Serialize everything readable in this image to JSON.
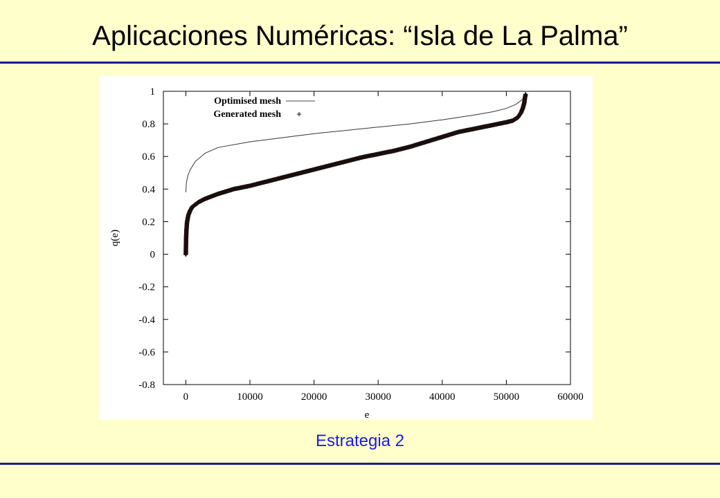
{
  "slide": {
    "title": "Aplicaciones Numéricas: “Isla de La Palma”",
    "caption": "Estrategia 2"
  },
  "chart_data": {
    "type": "line",
    "xlabel": "e",
    "ylabel": "q(e)",
    "xlim": [
      -3500,
      60000
    ],
    "ylim": [
      -0.8,
      1
    ],
    "x_ticks": [
      0,
      10000,
      20000,
      30000,
      40000,
      50000,
      60000
    ],
    "x_tick_labels": [
      "0",
      "10000",
      "20000",
      "30000",
      "40000",
      "50000",
      "60000"
    ],
    "y_ticks": [
      1,
      0.8,
      0.6,
      0.4,
      0.2,
      0,
      -0.2,
      -0.4,
      -0.6,
      -0.8
    ],
    "y_tick_labels": [
      "1",
      "0.8",
      "0.6",
      "0.4",
      "0.2",
      "0",
      "-0.2",
      "-0.4",
      "-0.6",
      "-0.8"
    ],
    "legend_position": "top-left",
    "series": [
      {
        "name": "Optimised mesh",
        "style": "line",
        "x": [
          0,
          100,
          300,
          700,
          1500,
          3000,
          5000,
          10000,
          15000,
          20000,
          25000,
          30000,
          35000,
          40000,
          45000,
          48000,
          50000,
          51500,
          52500,
          53000
        ],
        "y": [
          0.38,
          0.44,
          0.48,
          0.52,
          0.57,
          0.62,
          0.655,
          0.69,
          0.715,
          0.74,
          0.76,
          0.78,
          0.8,
          0.825,
          0.855,
          0.875,
          0.895,
          0.92,
          0.95,
          0.98
        ]
      },
      {
        "name": "Generated mesh",
        "style": "plus-markers",
        "x": [
          0,
          20,
          50,
          100,
          200,
          400,
          700,
          1000,
          2000,
          3000,
          5000,
          7500,
          10000,
          12500,
          15000,
          17500,
          20000,
          22500,
          25000,
          27500,
          30000,
          32500,
          35000,
          37500,
          40000,
          42500,
          45000,
          47500,
          50000,
          51000,
          51800,
          52300,
          52600,
          52800,
          52900,
          53000
        ],
        "y": [
          0.0,
          0.05,
          0.1,
          0.15,
          0.2,
          0.24,
          0.27,
          0.29,
          0.32,
          0.34,
          0.37,
          0.4,
          0.42,
          0.445,
          0.47,
          0.495,
          0.52,
          0.545,
          0.57,
          0.595,
          0.615,
          0.635,
          0.66,
          0.69,
          0.72,
          0.75,
          0.77,
          0.79,
          0.81,
          0.82,
          0.84,
          0.87,
          0.9,
          0.93,
          0.96,
          0.98
        ]
      }
    ]
  }
}
